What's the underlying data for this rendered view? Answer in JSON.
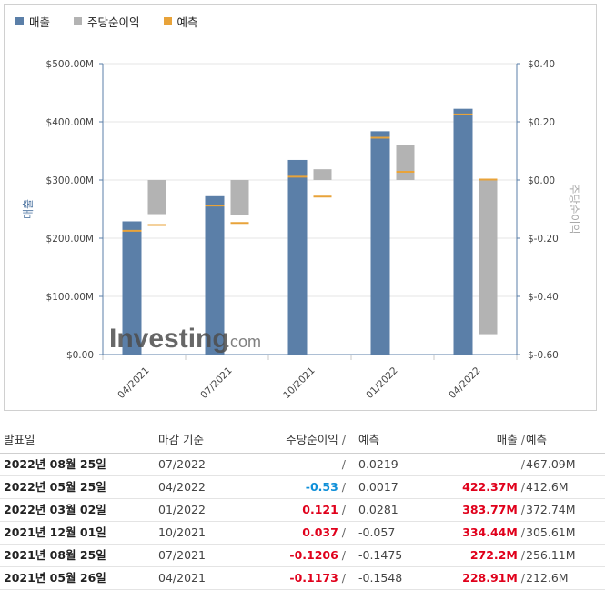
{
  "legend": [
    {
      "label": "매출",
      "color": "#5b7fa8"
    },
    {
      "label": "주당순이익",
      "color": "#b3b3b3"
    },
    {
      "label": "예측",
      "color": "#e8a33a"
    }
  ],
  "watermark": {
    "brand": "Investing",
    "suffix": ".com"
  },
  "chart_data": {
    "type": "bar",
    "categories": [
      "04/2021",
      "07/2021",
      "10/2021",
      "01/2022",
      "04/2022"
    ],
    "series": [
      {
        "name": "매출",
        "axis": "left",
        "values": [
          228.91,
          272.2,
          334.44,
          383.77,
          422.37
        ]
      },
      {
        "name": "주당순이익",
        "axis": "right",
        "values": [
          -0.1173,
          -0.1206,
          0.037,
          0.121,
          -0.53
        ]
      }
    ],
    "forecasts": {
      "revenue": [
        212.6,
        256.11,
        305.61,
        372.74,
        412.6
      ],
      "eps": [
        -0.1548,
        -0.1475,
        -0.057,
        0.0281,
        0.0017
      ]
    },
    "y_left": {
      "label": "매출",
      "min": 0,
      "max": 500,
      "ticks": [
        "$0.00",
        "$100.00M",
        "$200.00M",
        "$300.00M",
        "$400.00M",
        "$500.00M"
      ]
    },
    "y_right": {
      "label": "주당순이익",
      "min": -0.6,
      "max": 0.4,
      "ticks": [
        "$-0.60",
        "$-0.40",
        "$-0.20",
        "$0.00",
        "$0.20",
        "$0.40"
      ]
    },
    "colors": {
      "revenue": "#5b7fa8",
      "eps": "#b3b3b3",
      "forecast": "#e8a33a",
      "axis": "#5b7fa8"
    }
  },
  "table": {
    "headers": {
      "date": "발표일",
      "period": "마감 기준",
      "eps": "주당순이익",
      "eps_forecast": "예측",
      "revenue": "매출",
      "revenue_forecast": "예측",
      "slash": "/"
    },
    "rows": [
      {
        "date": "2022년 08월 25일",
        "period": "07/2022",
        "eps": "--",
        "eps_class": "plain",
        "eps_forecast": "0.0219",
        "revenue": "--",
        "rev_class": "plain",
        "revenue_forecast": "467.09M"
      },
      {
        "date": "2022년 05월 25일",
        "period": "04/2022",
        "eps": "-0.53",
        "eps_class": "blue",
        "eps_forecast": "0.0017",
        "revenue": "422.37M",
        "rev_class": "pos",
        "revenue_forecast": "412.6M"
      },
      {
        "date": "2022년 03월 02일",
        "period": "01/2022",
        "eps": "0.121",
        "eps_class": "pos",
        "eps_forecast": "0.0281",
        "revenue": "383.77M",
        "rev_class": "pos",
        "revenue_forecast": "372.74M"
      },
      {
        "date": "2021년 12월 01일",
        "period": "10/2021",
        "eps": "0.037",
        "eps_class": "pos",
        "eps_forecast": "-0.057",
        "revenue": "334.44M",
        "rev_class": "pos",
        "revenue_forecast": "305.61M"
      },
      {
        "date": "2021년 08월 25일",
        "period": "07/2021",
        "eps": "-0.1206",
        "eps_class": "neg",
        "eps_forecast": "-0.1475",
        "revenue": "272.2M",
        "rev_class": "pos",
        "revenue_forecast": "256.11M"
      },
      {
        "date": "2021년 05월 26일",
        "period": "04/2021",
        "eps": "-0.1173",
        "eps_class": "neg",
        "eps_forecast": "-0.1548",
        "revenue": "228.91M",
        "rev_class": "pos",
        "revenue_forecast": "212.6M"
      }
    ]
  }
}
